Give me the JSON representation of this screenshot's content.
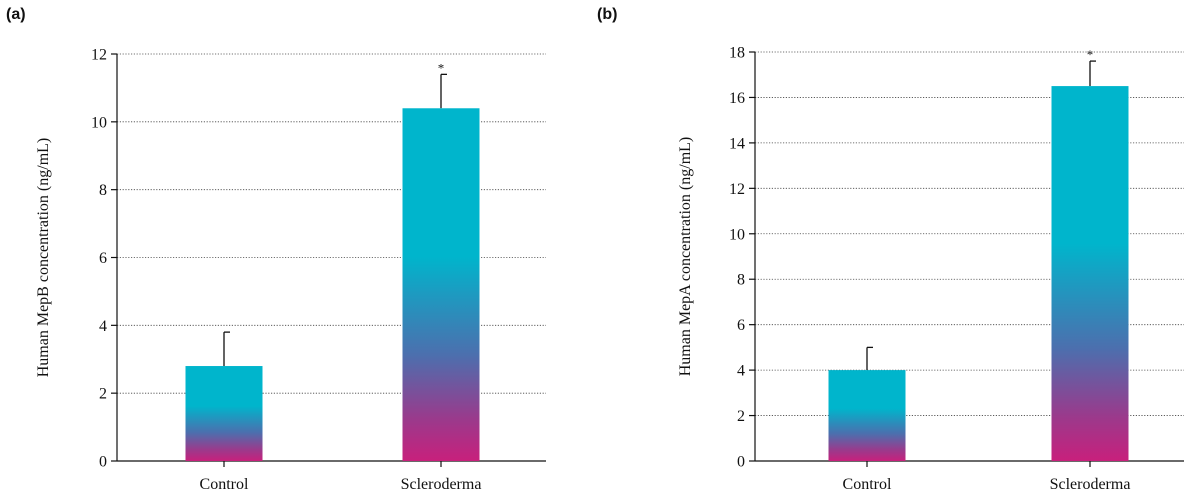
{
  "chart_data": [
    {
      "panel_label": "(a)",
      "type": "bar",
      "categories": [
        "Control",
        "Scleroderma"
      ],
      "values": [
        2.8,
        10.4
      ],
      "error": [
        1.0,
        1.0
      ],
      "significance": [
        "",
        "*"
      ],
      "title": "",
      "xlabel": "",
      "ylabel": "Human MepB concentration (ng/mL)",
      "ylim": [
        0,
        12
      ],
      "yticks": [
        0,
        2,
        4,
        6,
        8,
        10,
        12
      ],
      "grid": true
    },
    {
      "panel_label": "(b)",
      "type": "bar",
      "categories": [
        "Control",
        "Scleroderma"
      ],
      "values": [
        4.0,
        16.5
      ],
      "error": [
        1.0,
        1.1
      ],
      "significance": [
        "",
        "*"
      ],
      "title": "",
      "xlabel": "",
      "ylabel": "Human MepA concentration (ng/mL)",
      "ylim": [
        0,
        18
      ],
      "yticks": [
        0,
        2,
        4,
        6,
        8,
        10,
        12,
        14,
        16,
        18
      ],
      "grid": true
    }
  ],
  "colors": {
    "bar_top": "#00b5cc",
    "bar_bottom": "#c8207c",
    "grid": "#444444",
    "axis": "#111111"
  }
}
